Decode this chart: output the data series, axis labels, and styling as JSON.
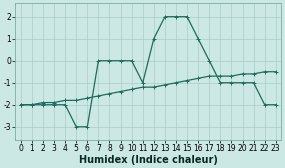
{
  "xlabel": "Humidex (Indice chaleur)",
  "background_color": "#cce8e4",
  "grid_color": "#aaccca",
  "line_color": "#1e6b5c",
  "x_ticks": [
    0,
    1,
    2,
    3,
    4,
    5,
    6,
    7,
    8,
    9,
    10,
    11,
    12,
    13,
    14,
    15,
    16,
    17,
    18,
    19,
    20,
    21,
    22,
    23
  ],
  "y_ticks": [
    -3,
    -2,
    -1,
    0,
    1,
    2
  ],
  "ylim": [
    -3.6,
    2.6
  ],
  "xlim": [
    -0.5,
    23.5
  ],
  "series1_x": [
    0,
    1,
    2,
    3,
    4,
    5,
    6,
    7,
    8,
    9,
    10,
    11,
    12,
    13,
    14,
    15,
    16,
    17,
    18,
    19,
    20,
    21,
    22,
    23
  ],
  "series1_y": [
    -2.0,
    -2.0,
    -1.9,
    -1.9,
    -1.8,
    -1.8,
    -1.7,
    -1.6,
    -1.5,
    -1.4,
    -1.3,
    -1.2,
    -1.2,
    -1.1,
    -1.0,
    -0.9,
    -0.8,
    -0.7,
    -0.7,
    -0.7,
    -0.6,
    -0.6,
    -0.5,
    -0.5
  ],
  "series2_x": [
    0,
    1,
    2,
    3,
    4,
    5,
    6,
    7,
    8,
    9,
    10,
    11,
    12,
    13,
    14,
    15,
    16,
    17,
    18,
    19,
    20,
    21,
    22,
    23
  ],
  "series2_y": [
    -2,
    -2,
    -2,
    -2,
    -2,
    -3,
    -3,
    0,
    0,
    0,
    0,
    -1,
    1,
    2,
    2,
    2,
    1,
    0,
    -1,
    -1,
    -1,
    -1,
    -2,
    -2
  ],
  "xlabel_fontsize": 7,
  "tick_fontsize": 5.5,
  "linewidth": 0.9,
  "markersize": 3
}
